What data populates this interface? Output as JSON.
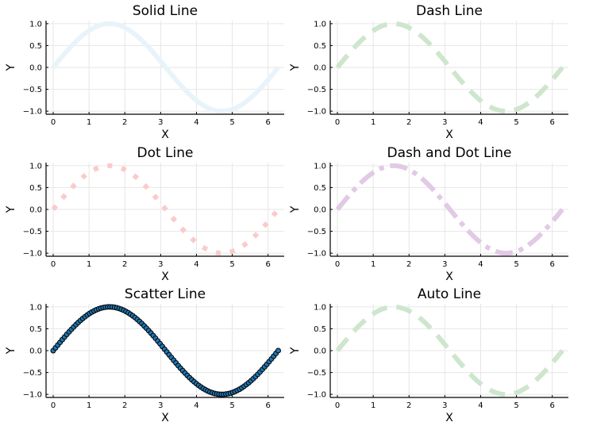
{
  "chart_data": [
    {
      "type": "line",
      "title": "Solid Line",
      "xlabel": "X",
      "ylabel": "Y",
      "xlim": [
        -0.2,
        6.45
      ],
      "ylim": [
        -1.07,
        1.07
      ],
      "xticks": [
        0,
        1,
        2,
        3,
        4,
        5,
        6
      ],
      "yticks": [
        1.0,
        0.5,
        0.0,
        -0.5,
        -1.0
      ],
      "ytick_labels": [
        "1.0",
        "0.5",
        "0.0",
        "−0.5",
        "−1.0"
      ],
      "grid": true,
      "series": [
        {
          "function": "sin",
          "x_range": [
            0,
            6.283
          ],
          "style": "solid",
          "color": "#e8f4fa",
          "width": 6
        }
      ]
    },
    {
      "type": "line",
      "title": "Dash Line",
      "xlabel": "X",
      "ylabel": "Y",
      "xlim": [
        -0.2,
        6.45
      ],
      "ylim": [
        -1.07,
        1.07
      ],
      "xticks": [
        0,
        1,
        2,
        3,
        4,
        5,
        6
      ],
      "yticks": [
        1.0,
        0.5,
        0.0,
        -0.5,
        -1.0
      ],
      "ytick_labels": [
        "1.0",
        "0.5",
        "0.0",
        "−0.5",
        "−1.0"
      ],
      "grid": true,
      "series": [
        {
          "function": "sin",
          "x_range": [
            0,
            6.283
          ],
          "style": "dash",
          "color": "#cde6cd",
          "width": 6
        }
      ]
    },
    {
      "type": "line",
      "title": "Dot Line",
      "xlabel": "X",
      "ylabel": "Y",
      "xlim": [
        -0.2,
        6.45
      ],
      "ylim": [
        -1.07,
        1.07
      ],
      "xticks": [
        0,
        1,
        2,
        3,
        4,
        5,
        6
      ],
      "yticks": [
        1.0,
        0.5,
        0.0,
        -0.5,
        -1.0
      ],
      "ytick_labels": [
        "1.0",
        "0.5",
        "0.0",
        "−0.5",
        "−1.0"
      ],
      "grid": true,
      "series": [
        {
          "function": "sin",
          "x_range": [
            0,
            6.283
          ],
          "style": "dot",
          "color": "#fbcaca",
          "width": 6
        }
      ]
    },
    {
      "type": "line",
      "title": "Dash and Dot Line",
      "xlabel": "X",
      "ylabel": "Y",
      "xlim": [
        -0.2,
        6.45
      ],
      "ylim": [
        -1.07,
        1.07
      ],
      "xticks": [
        0,
        1,
        2,
        3,
        4,
        5,
        6
      ],
      "yticks": [
        1.0,
        0.5,
        0.0,
        -0.5,
        -1.0
      ],
      "ytick_labels": [
        "1.0",
        "0.5",
        "0.0",
        "−0.5",
        "−1.0"
      ],
      "grid": true,
      "series": [
        {
          "function": "sin",
          "x_range": [
            0,
            6.283
          ],
          "style": "dashdot",
          "color": "#e2c9e6",
          "width": 6
        }
      ]
    },
    {
      "type": "scatter",
      "title": "Scatter Line",
      "xlabel": "X",
      "ylabel": "Y",
      "xlim": [
        -0.2,
        6.45
      ],
      "ylim": [
        -1.07,
        1.07
      ],
      "xticks": [
        0,
        1,
        2,
        3,
        4,
        5,
        6
      ],
      "yticks": [
        1.0,
        0.5,
        0.0,
        -0.5,
        -1.0
      ],
      "ytick_labels": [
        "1.0",
        "0.5",
        "0.0",
        "−0.5",
        "−1.0"
      ],
      "grid": true,
      "series": [
        {
          "function": "sin",
          "x_range": [
            0,
            6.283
          ],
          "points": 100,
          "style": "markers",
          "color": "#1f77b4",
          "edge_color": "#000000"
        }
      ]
    },
    {
      "type": "line",
      "title": "Auto Line",
      "xlabel": "X",
      "ylabel": "Y",
      "xlim": [
        -0.2,
        6.45
      ],
      "ylim": [
        -1.07,
        1.07
      ],
      "xticks": [
        0,
        1,
        2,
        3,
        4,
        5,
        6
      ],
      "yticks": [
        1.0,
        0.5,
        0.0,
        -0.5,
        -1.0
      ],
      "ytick_labels": [
        "1.0",
        "0.5",
        "0.0",
        "−0.5",
        "−1.0"
      ],
      "grid": true,
      "series": [
        {
          "function": "sin",
          "x_range": [
            0,
            6.283
          ],
          "style": "dash",
          "color": "#cde6cd",
          "width": 6
        }
      ]
    }
  ]
}
